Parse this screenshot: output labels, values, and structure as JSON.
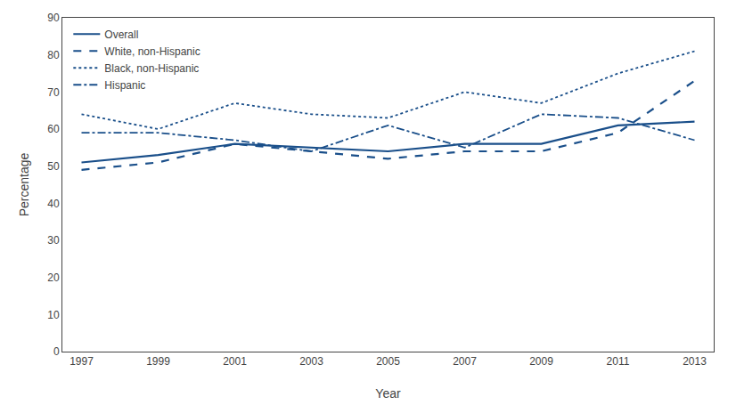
{
  "chart_data": {
    "type": "line",
    "xlabel": "Year",
    "ylabel": "Percentage",
    "x": [
      1997,
      1999,
      2001,
      2003,
      2005,
      2007,
      2009,
      2011,
      2013
    ],
    "series": [
      {
        "name": "Overall",
        "color": "#1a4f8a",
        "line_style": "solid",
        "values": [
          51,
          53,
          56,
          55,
          54,
          56,
          56,
          61,
          62
        ]
      },
      {
        "name": "White, non-Hispanic",
        "color": "#1a4f8a",
        "line_style": "dashed",
        "values": [
          49,
          51,
          56,
          54,
          52,
          54,
          54,
          59,
          73
        ]
      },
      {
        "name": "Black, non-Hispanic",
        "color": "#1a4f8a",
        "line_style": "dotted",
        "values": [
          64,
          60,
          67,
          64,
          63,
          70,
          67,
          75,
          81
        ]
      },
      {
        "name": "Hispanic",
        "color": "#1a4f8a",
        "line_style": "dashdot",
        "values": [
          59,
          59,
          57,
          54,
          61,
          55,
          64,
          63,
          57
        ]
      }
    ],
    "xlim": [
      1996.5,
      2013.5
    ],
    "xticks": [
      1997,
      1999,
      2001,
      2003,
      2005,
      2007,
      2009,
      2011,
      2013
    ],
    "ylim": [
      0,
      90
    ],
    "yticks": [
      0,
      10,
      20,
      30,
      40,
      50,
      60,
      70,
      80,
      90
    ],
    "grid": false,
    "legend": "upper left"
  }
}
